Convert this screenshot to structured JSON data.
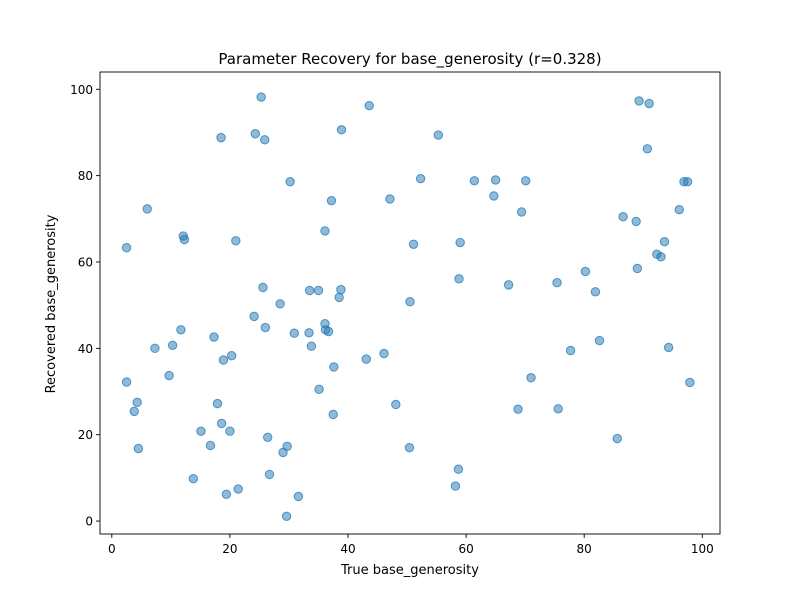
{
  "chart_data": {
    "type": "scatter",
    "title": "Parameter Recovery for base_generosity (r=0.328)",
    "xlabel": "True base_generosity",
    "ylabel": "Recovered base_generosity",
    "xlim": [
      -2,
      103
    ],
    "ylim": [
      -3,
      104
    ],
    "xticks": [
      0,
      20,
      40,
      60,
      80,
      100
    ],
    "yticks": [
      0,
      20,
      40,
      60,
      80,
      100
    ],
    "grid": false,
    "legend": "none",
    "marker_color": "#1f77b4",
    "marker_alpha": 0.5,
    "points": [
      [
        2.5,
        63.3
      ],
      [
        2.5,
        32.2
      ],
      [
        3.8,
        25.4
      ],
      [
        4.3,
        27.5
      ],
      [
        4.5,
        16.8
      ],
      [
        6.0,
        72.3
      ],
      [
        7.3,
        40.0
      ],
      [
        9.7,
        33.7
      ],
      [
        10.3,
        40.7
      ],
      [
        11.7,
        44.3
      ],
      [
        12.1,
        66.0
      ],
      [
        12.3,
        65.2
      ],
      [
        13.8,
        9.8
      ],
      [
        15.1,
        20.8
      ],
      [
        16.7,
        17.5
      ],
      [
        17.3,
        42.6
      ],
      [
        17.9,
        27.2
      ],
      [
        18.5,
        88.8
      ],
      [
        18.6,
        22.6
      ],
      [
        18.9,
        37.3
      ],
      [
        19.4,
        6.2
      ],
      [
        20.0,
        20.8
      ],
      [
        20.3,
        38.3
      ],
      [
        21.0,
        64.9
      ],
      [
        21.4,
        7.4
      ],
      [
        24.1,
        47.4
      ],
      [
        24.3,
        89.7
      ],
      [
        25.3,
        98.2
      ],
      [
        25.6,
        54.1
      ],
      [
        25.9,
        88.3
      ],
      [
        26.0,
        44.8
      ],
      [
        26.4,
        19.4
      ],
      [
        26.7,
        10.8
      ],
      [
        28.5,
        50.3
      ],
      [
        29.0,
        15.9
      ],
      [
        29.6,
        1.1
      ],
      [
        29.7,
        17.3
      ],
      [
        30.2,
        78.6
      ],
      [
        30.9,
        43.5
      ],
      [
        31.6,
        5.7
      ],
      [
        33.4,
        43.6
      ],
      [
        33.5,
        53.4
      ],
      [
        33.8,
        40.5
      ],
      [
        35.0,
        53.4
      ],
      [
        35.1,
        30.5
      ],
      [
        36.1,
        67.2
      ],
      [
        36.1,
        45.7
      ],
      [
        36.2,
        44.3
      ],
      [
        36.7,
        43.9
      ],
      [
        37.2,
        74.2
      ],
      [
        37.5,
        24.7
      ],
      [
        37.6,
        35.7
      ],
      [
        38.5,
        51.8
      ],
      [
        38.8,
        53.6
      ],
      [
        38.9,
        90.6
      ],
      [
        43.1,
        37.5
      ],
      [
        43.6,
        96.2
      ],
      [
        46.1,
        38.8
      ],
      [
        47.1,
        74.6
      ],
      [
        48.1,
        27.0
      ],
      [
        50.4,
        17.0
      ],
      [
        50.5,
        50.8
      ],
      [
        51.1,
        64.1
      ],
      [
        52.3,
        79.3
      ],
      [
        55.3,
        89.4
      ],
      [
        58.2,
        8.1
      ],
      [
        58.7,
        12.0
      ],
      [
        58.8,
        56.1
      ],
      [
        59.0,
        64.5
      ],
      [
        61.4,
        78.8
      ],
      [
        64.7,
        75.3
      ],
      [
        65.0,
        79.0
      ],
      [
        67.2,
        54.7
      ],
      [
        68.8,
        25.9
      ],
      [
        69.4,
        71.6
      ],
      [
        70.1,
        78.8
      ],
      [
        71.0,
        33.2
      ],
      [
        75.4,
        55.2
      ],
      [
        75.6,
        26.0
      ],
      [
        77.7,
        39.5
      ],
      [
        80.2,
        57.8
      ],
      [
        81.9,
        53.1
      ],
      [
        82.6,
        41.8
      ],
      [
        85.6,
        19.1
      ],
      [
        86.6,
        70.5
      ],
      [
        88.8,
        69.4
      ],
      [
        89.0,
        58.5
      ],
      [
        89.3,
        97.3
      ],
      [
        90.7,
        86.2
      ],
      [
        91.0,
        96.7
      ],
      [
        92.3,
        61.8
      ],
      [
        93.0,
        61.2
      ],
      [
        93.6,
        64.7
      ],
      [
        94.3,
        40.2
      ],
      [
        96.1,
        72.1
      ],
      [
        96.9,
        78.6
      ],
      [
        97.5,
        78.6
      ],
      [
        97.9,
        32.1
      ]
    ]
  }
}
